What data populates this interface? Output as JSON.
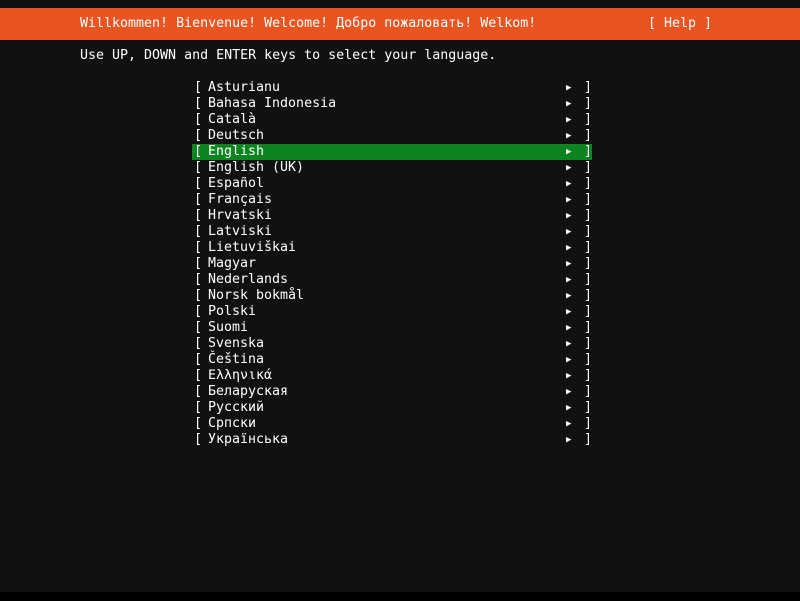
{
  "header": {
    "title": "Willkommen! Bienvenue! Welcome! Добро пожаловать! Welkom!",
    "help_label": "[ Help ]",
    "color": "#e95420"
  },
  "instructions": "Use UP, DOWN and ENTER keys to select your language.",
  "selection_color": "#0e8420",
  "selected_index": 4,
  "languages": [
    "Asturianu",
    "Bahasa Indonesia",
    "Català",
    "Deutsch",
    "English",
    "English (UK)",
    "Español",
    "Français",
    "Hrvatski",
    "Latviski",
    "Lietuviškai",
    "Magyar",
    "Nederlands",
    "Norsk bokmål",
    "Polski",
    "Suomi",
    "Svenska",
    "Čeština",
    "Ελληνικά",
    "Беларуская",
    "Русский",
    "Српски",
    "Українська"
  ],
  "row_icon": "triangle-right-icon"
}
